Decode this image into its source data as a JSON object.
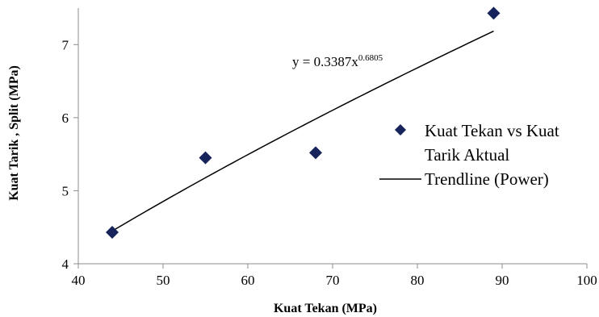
{
  "chart_data": {
    "type": "scatter",
    "xlabel": "Kuat Tekan (MPa)",
    "ylabel": "Kuat Tarik , Split (MPa)",
    "xlim": [
      40,
      100
    ],
    "ylim": [
      4,
      7.5
    ],
    "x_ticks": [
      40,
      50,
      60,
      70,
      80,
      90,
      100
    ],
    "y_ticks": [
      4,
      5,
      6,
      7
    ],
    "grid": false,
    "legend_position": "right",
    "series": [
      {
        "name": "Kuat Tekan vs Kuat Tarik Aktual",
        "marker": "diamond",
        "color": "#17245c",
        "x": [
          44,
          55,
          68,
          89
        ],
        "y": [
          4.43,
          5.45,
          5.52,
          7.43
        ]
      }
    ],
    "trendline": {
      "name": "Trendline (Power)",
      "type": "power",
      "coefficient": 0.3387,
      "exponent": 0.6805,
      "color": "#000000",
      "x_range": [
        44,
        89
      ],
      "equation_base": "y = 0.3387x",
      "equation_exponent": "0.6805"
    },
    "legend": {
      "series_line1": "Kuat Tekan vs Kuat",
      "series_line2": "Tarik Aktual",
      "trend_label": "Trendline (Power)"
    }
  }
}
